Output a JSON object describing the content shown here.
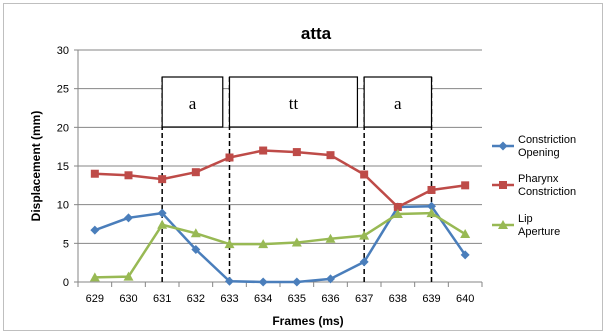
{
  "chart_data": {
    "type": "line",
    "title": "atta",
    "xlabel": "Frames (ms)",
    "ylabel": "Displacement (mm)",
    "x": [
      "629",
      "630",
      "631",
      "632",
      "633",
      "634",
      "635",
      "636",
      "637",
      "638",
      "639",
      "640"
    ],
    "ylim": [
      0,
      30
    ],
    "yticks": [
      0,
      5,
      10,
      15,
      20,
      25,
      30
    ],
    "grid": true,
    "legend_position": "right",
    "series": [
      {
        "name": "Constriction Opening",
        "color": "#4a7ebb",
        "marker": "diamond",
        "values": [
          6.7,
          8.3,
          8.9,
          4.2,
          0.1,
          0.0,
          0.0,
          0.4,
          2.6,
          9.7,
          9.8,
          3.5
        ]
      },
      {
        "name": "Pharynx Constriction",
        "color": "#be4b48",
        "marker": "square",
        "values": [
          14.0,
          13.8,
          13.3,
          14.2,
          16.1,
          17.0,
          16.8,
          16.4,
          13.9,
          9.7,
          11.9,
          12.5
        ]
      },
      {
        "name": "Lip Aperture",
        "color": "#98b954",
        "marker": "triangle",
        "values": [
          0.6,
          0.7,
          7.4,
          6.3,
          4.9,
          4.9,
          5.1,
          5.6,
          6.0,
          8.8,
          8.9,
          6.2
        ]
      }
    ],
    "segments": [
      {
        "label": "a",
        "start": "631",
        "end": "632.8"
      },
      {
        "label": "tt",
        "start": "633",
        "end": "636.8"
      },
      {
        "label": "a",
        "start": "637",
        "end": "639"
      }
    ],
    "segment_boundaries": [
      "631",
      "633",
      "637",
      "639"
    ]
  }
}
